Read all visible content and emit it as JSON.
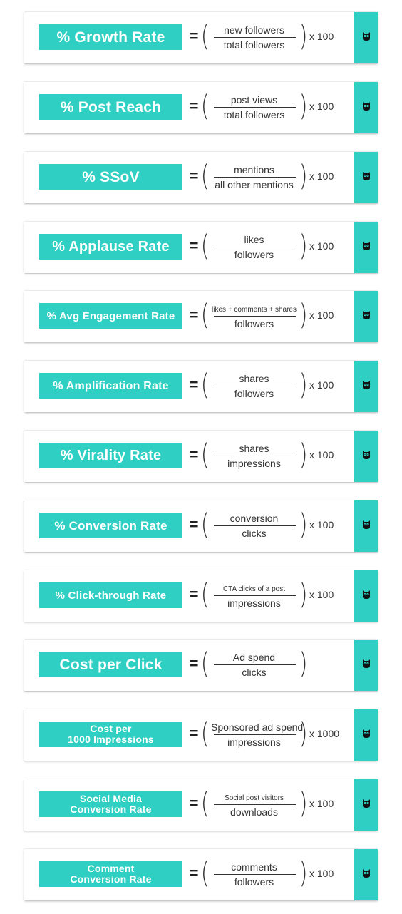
{
  "metrics": [
    {
      "name": "% Growth Rate",
      "numerator": "new followers",
      "denominator": "total followers",
      "multiplier": "x 100"
    },
    {
      "name": "% Post Reach",
      "numerator": "post views",
      "denominator": "total followers",
      "multiplier": "x 100"
    },
    {
      "name": "% SSoV",
      "numerator": "mentions",
      "denominator": "all other mentions",
      "multiplier": "x 100"
    },
    {
      "name": "% Applause Rate",
      "numerator": "likes",
      "denominator": "followers",
      "multiplier": "x 100"
    },
    {
      "name": "% Avg Engagement Rate",
      "numerator": "likes + comments + shares",
      "denominator": "followers",
      "multiplier": "x 100"
    },
    {
      "name": "% Amplification Rate",
      "numerator": "shares",
      "denominator": "followers",
      "multiplier": "x 100"
    },
    {
      "name": "% Virality Rate",
      "numerator": "shares",
      "denominator": "impressions",
      "multiplier": "x 100"
    },
    {
      "name": "% Conversion Rate",
      "numerator": "conversion",
      "denominator": "clicks",
      "multiplier": "x 100"
    },
    {
      "name": "% Click-through Rate",
      "numerator": "CTA clicks of a post",
      "denominator": "impressions",
      "multiplier": "x 100"
    },
    {
      "name": "Cost per Click",
      "numerator": "Ad spend",
      "denominator": "clicks",
      "multiplier": ""
    },
    {
      "name": "Cost per\n1000 Impressions",
      "numerator": "Sponsored ad spend",
      "denominator": "impressions",
      "multiplier": "x 1000"
    },
    {
      "name": "Social Media\nConversion Rate",
      "numerator": "Social post visitors",
      "denominator": "downloads",
      "multiplier": "x 100"
    },
    {
      "name": "Comment\nConversion Rate",
      "numerator": "comments",
      "denominator": "followers",
      "multiplier": "x 100"
    }
  ],
  "equals_sign": "=",
  "open_paren": "(",
  "close_paren": ")",
  "brand_icon": "owl-icon",
  "colors": {
    "accent": "#2fd0c3",
    "text": "#333333",
    "label_text": "#ffffff"
  }
}
